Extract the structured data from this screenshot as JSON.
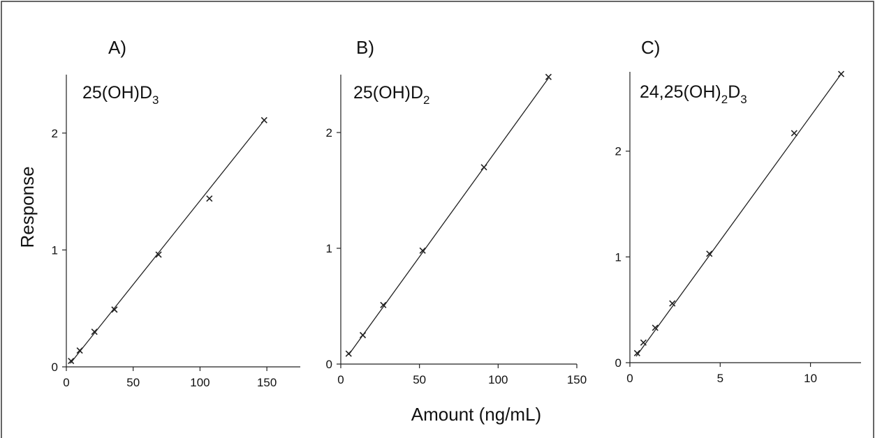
{
  "figure": {
    "xlabel": "Amount (ng/mL)",
    "ylabel": "Response"
  },
  "chart_data": [
    {
      "type": "scatter",
      "panel": "A)",
      "compound": {
        "base": "25(OH)D",
        "sub": "3",
        "rest": ""
      },
      "xlim": [
        0,
        175
      ],
      "ylim": [
        0,
        2.5
      ],
      "xticks": [
        0,
        50,
        100,
        150
      ],
      "yticks": [
        0,
        1,
        2
      ],
      "fit": {
        "x": [
          3,
          148
        ],
        "y": [
          0.03,
          2.11
        ]
      },
      "series": [
        {
          "x": [
            3.5,
            10,
            21,
            36,
            69,
            107,
            148
          ],
          "y": [
            0.05,
            0.14,
            0.3,
            0.49,
            0.96,
            1.44,
            2.11
          ]
        }
      ]
    },
    {
      "type": "scatter",
      "panel": "B)",
      "compound": {
        "base": "25(OH)D",
        "sub": "2",
        "rest": ""
      },
      "xlim": [
        0,
        150
      ],
      "ylim": [
        0,
        2.5
      ],
      "xticks": [
        0,
        50,
        100,
        150
      ],
      "yticks": [
        0,
        1,
        2
      ],
      "fit": {
        "x": [
          5,
          132
        ],
        "y": [
          0.08,
          2.47
        ]
      },
      "series": [
        {
          "x": [
            5,
            14,
            27,
            52,
            91,
            132
          ],
          "y": [
            0.09,
            0.25,
            0.51,
            0.98,
            1.7,
            2.48
          ]
        }
      ]
    },
    {
      "type": "scatter",
      "panel": "C)",
      "compound": {
        "base": "24,25(OH)",
        "sub": "2",
        "rest": "D",
        "sub2": "3"
      },
      "xlim": [
        0,
        12.8
      ],
      "ylim": [
        0,
        2.75
      ],
      "xticks": [
        0,
        5,
        10
      ],
      "yticks": [
        0,
        1,
        2
      ],
      "fit": {
        "x": [
          0.35,
          11.7
        ],
        "y": [
          0.06,
          2.73
        ]
      },
      "series": [
        {
          "x": [
            0.4,
            0.75,
            1.4,
            2.35,
            4.4,
            9.1,
            11.7
          ],
          "y": [
            0.09,
            0.19,
            0.33,
            0.56,
            1.03,
            2.17,
            2.73
          ]
        }
      ]
    }
  ]
}
